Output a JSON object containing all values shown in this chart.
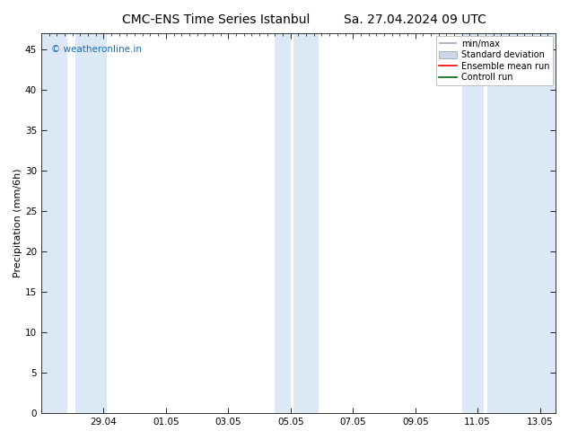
{
  "title": "CMC-ENS Time Series Istanbul",
  "title2": "Sa. 27.04.2024 09 UTC",
  "ylabel": "Precipitation (mm/6h)",
  "ylabel_fontsize": 8,
  "title_fontsize": 10,
  "background_color": "#ffffff",
  "plot_bg_color": "#ffffff",
  "ylim": [
    0,
    47
  ],
  "yticks": [
    0,
    5,
    10,
    15,
    20,
    25,
    30,
    35,
    40,
    45
  ],
  "xtick_labels": [
    "29.04",
    "01.05",
    "03.05",
    "05.05",
    "07.05",
    "09.05",
    "11.05",
    "13.05"
  ],
  "xtick_positions": [
    2,
    4,
    6,
    8,
    10,
    12,
    14,
    16
  ],
  "x_min": 0,
  "x_max": 16.5,
  "band_color": "#dce8f5",
  "band_color2": "#cfddf0",
  "bands": [
    [
      0.0,
      0.85
    ],
    [
      1.1,
      2.1
    ],
    [
      7.5,
      8.0
    ],
    [
      8.1,
      8.9
    ],
    [
      13.5,
      14.2
    ],
    [
      14.3,
      16.5
    ]
  ],
  "ensemble_mean_color": "#ff0000",
  "control_run_color": "#006600",
  "minmax_color": "#a0aaba",
  "std_color": "#ccd8ea",
  "watermark": "© weatheronline.in",
  "watermark_color": "#1a6bb5",
  "legend_labels": [
    "min/max",
    "Standard deviation",
    "Ensemble mean run",
    "Controll run"
  ],
  "legend_colors": [
    "#a0aaba",
    "#ccd8ea",
    "#ff0000",
    "#006600"
  ]
}
